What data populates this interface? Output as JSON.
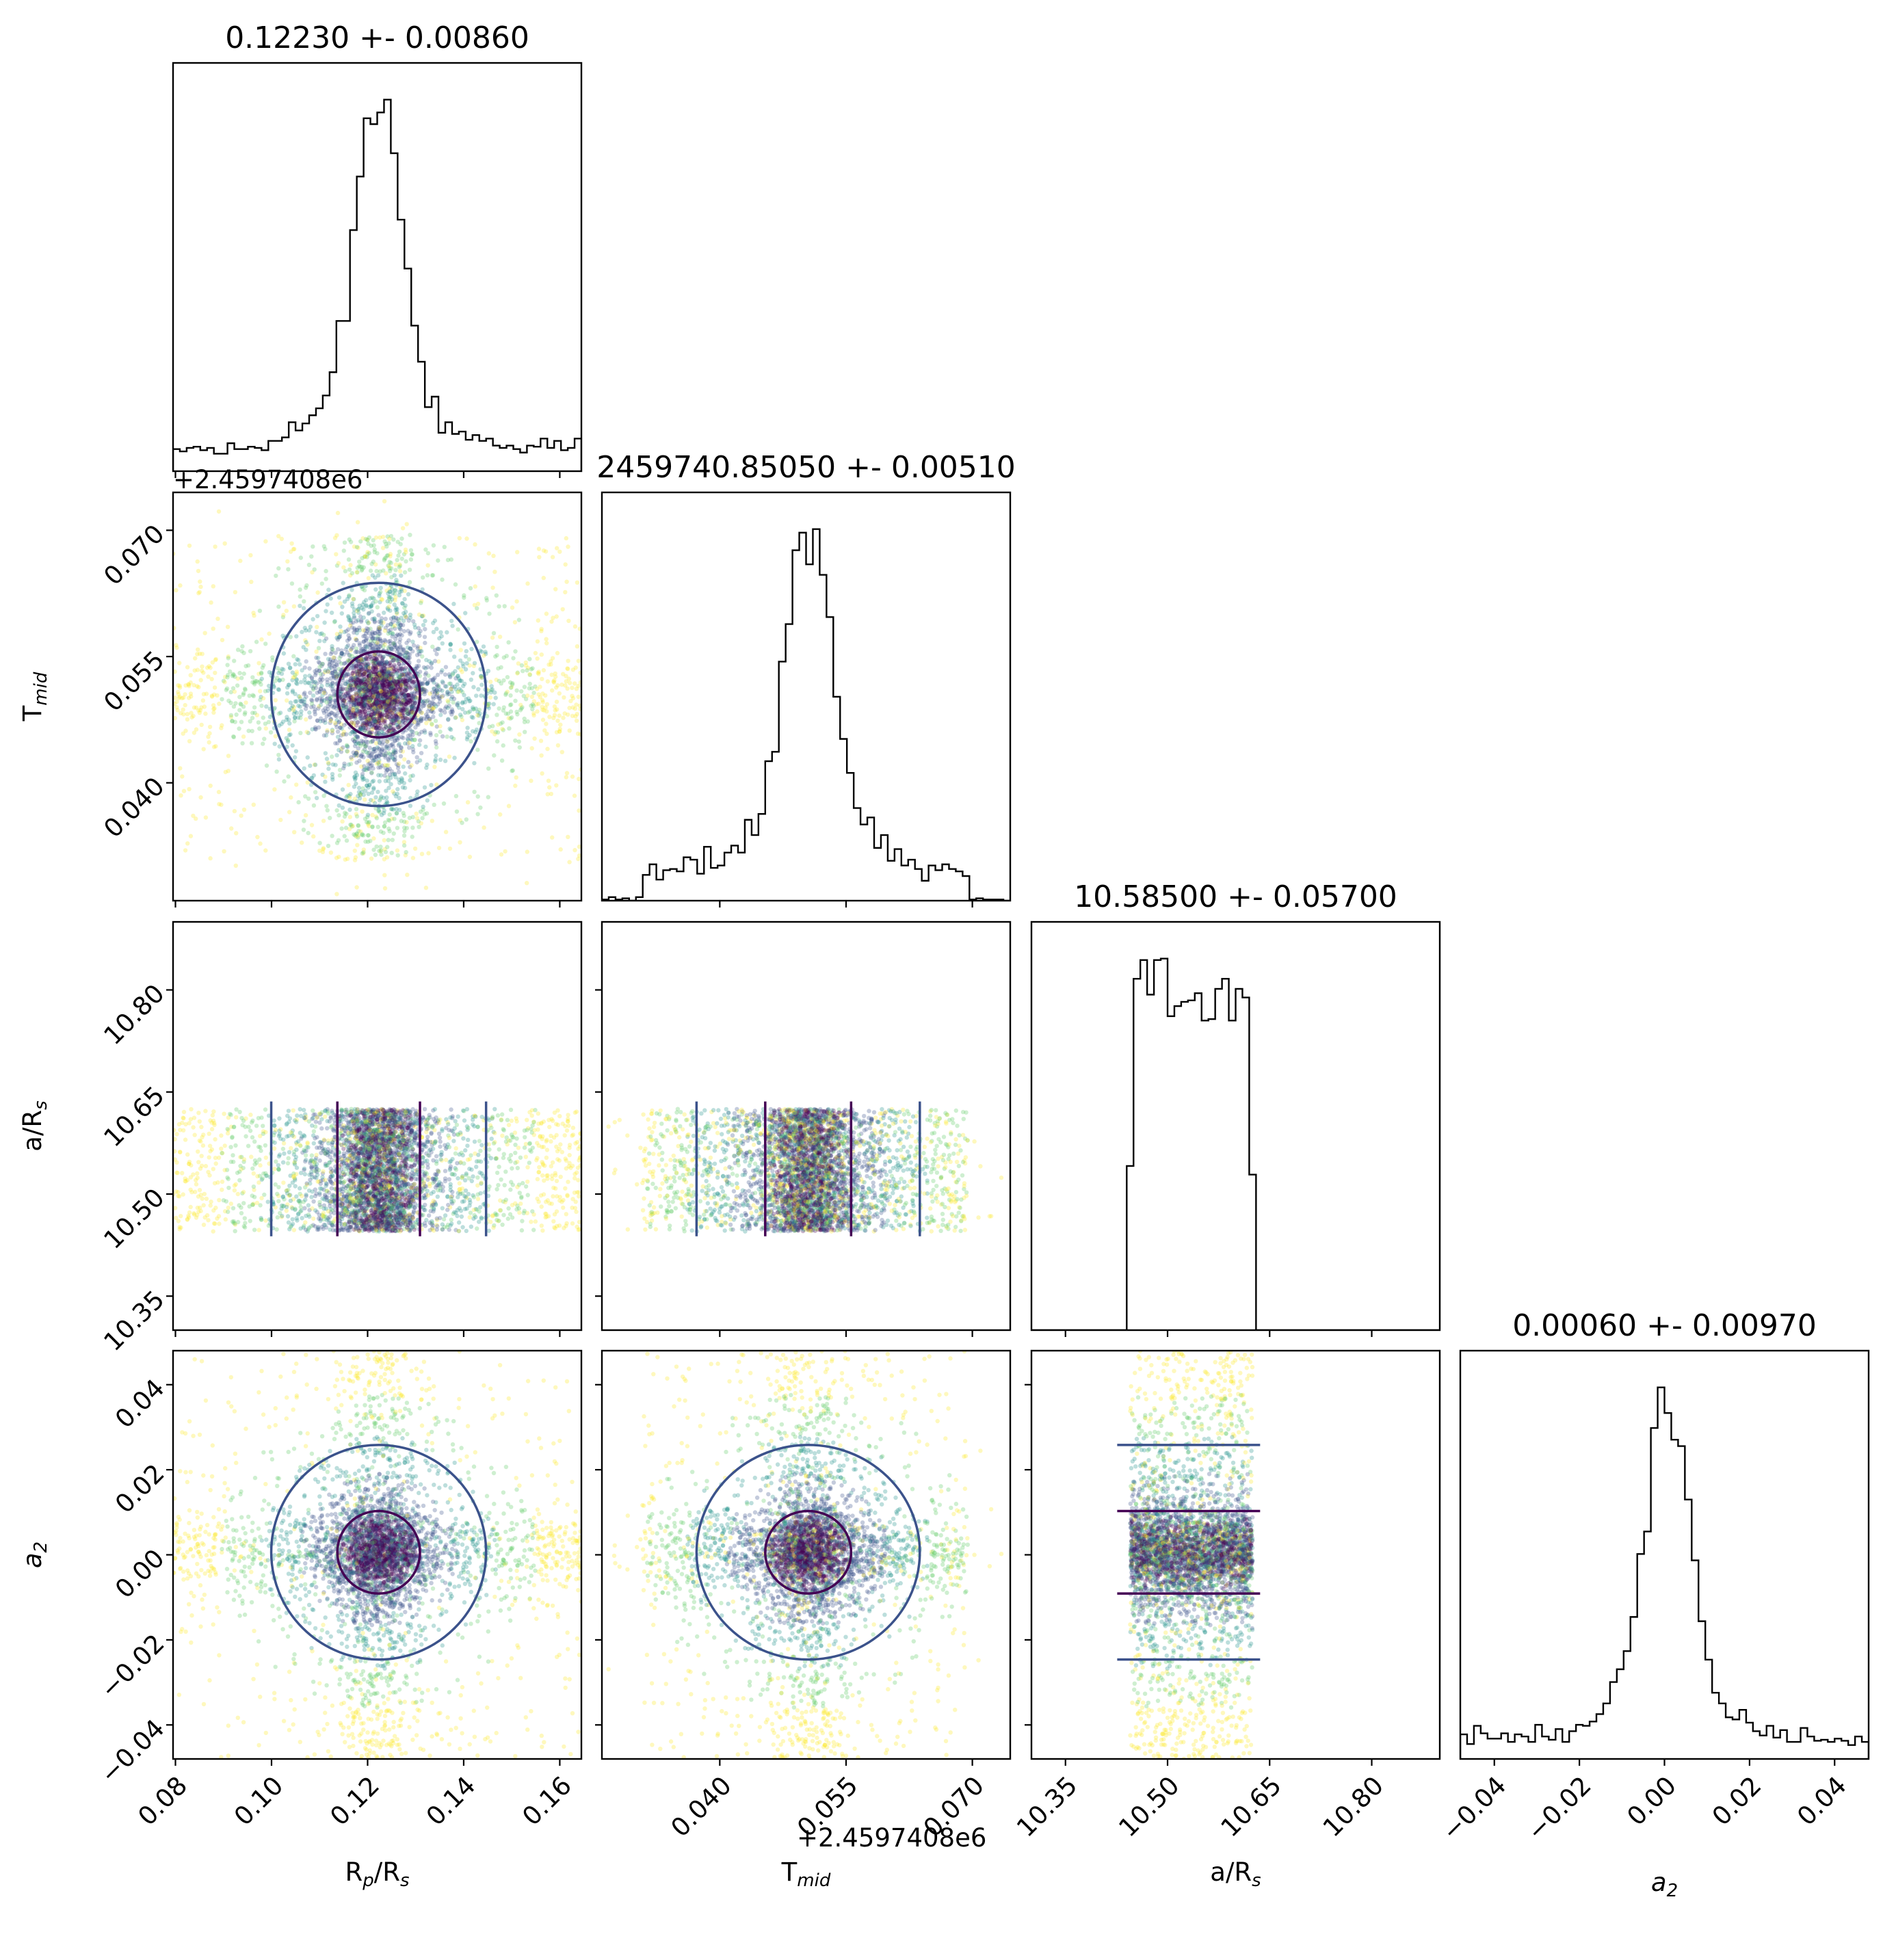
{
  "chart_data": {
    "type": "corner",
    "parameters": [
      {
        "symbol": "R",
        "sub": "p",
        "tail": "/R",
        "sub2": "s",
        "italic": false
      },
      {
        "symbol": "T",
        "sub": "mid",
        "tail": "",
        "sub2": "",
        "italic": false
      },
      {
        "symbol": "a/R",
        "sub": "s",
        "tail": "",
        "sub2": "",
        "italic": false
      },
      {
        "symbol": "a",
        "sub": "2",
        "tail": "",
        "sub2": "",
        "italic": true
      }
    ],
    "titles": [
      "0.12230 +- 0.00860",
      "2459740.85050 +- 0.00510",
      "10.58500 +- 0.05700",
      "0.00060 +- 0.00970"
    ],
    "offset_label": "+2.4597408e6",
    "ranges": [
      [
        0.0795,
        0.1645
      ],
      [
        0.026,
        0.0745
      ],
      [
        10.3,
        10.9
      ],
      [
        -0.048,
        0.048
      ]
    ],
    "ticks": [
      [
        "0.08",
        "0.10",
        "0.12",
        "0.14",
        "0.16"
      ],
      [
        "0.040",
        "0.055",
        "0.070"
      ],
      [
        "10.35",
        "10.50",
        "10.65",
        "10.80"
      ],
      [
        "−0.04",
        "−0.02",
        "0.00",
        "0.02",
        "0.04"
      ]
    ],
    "tick_values": [
      [
        0.08,
        0.1,
        0.12,
        0.14,
        0.16
      ],
      [
        0.04,
        0.055,
        0.07
      ],
      [
        10.35,
        10.5,
        10.65,
        10.8
      ],
      [
        -0.04,
        -0.02,
        0.0,
        0.02,
        0.04
      ]
    ],
    "marginals": [
      {
        "center": 0.1223,
        "sigma": 0.0086,
        "shape": "peaked",
        "support": [
          0.0795,
          0.1645
        ]
      },
      {
        "center": 0.0505,
        "sigma": 0.0051,
        "shape": "peaked",
        "support": [
          0.0308,
          0.0695
        ]
      },
      {
        "center": 10.585,
        "sigma": 0.057,
        "shape": "uniform",
        "support": [
          10.445,
          10.625
        ]
      },
      {
        "center": 0.0006,
        "sigma": 0.0097,
        "shape": "peaked",
        "support": [
          -0.048,
          0.048
        ]
      }
    ],
    "colormap": [
      "#440154",
      "#3b528b",
      "#21918c",
      "#5ec962",
      "#fde725"
    ],
    "hist_color": "#000000",
    "contour_colors": [
      "#440154",
      "#3b528b"
    ],
    "grid": false,
    "legend": "none"
  }
}
